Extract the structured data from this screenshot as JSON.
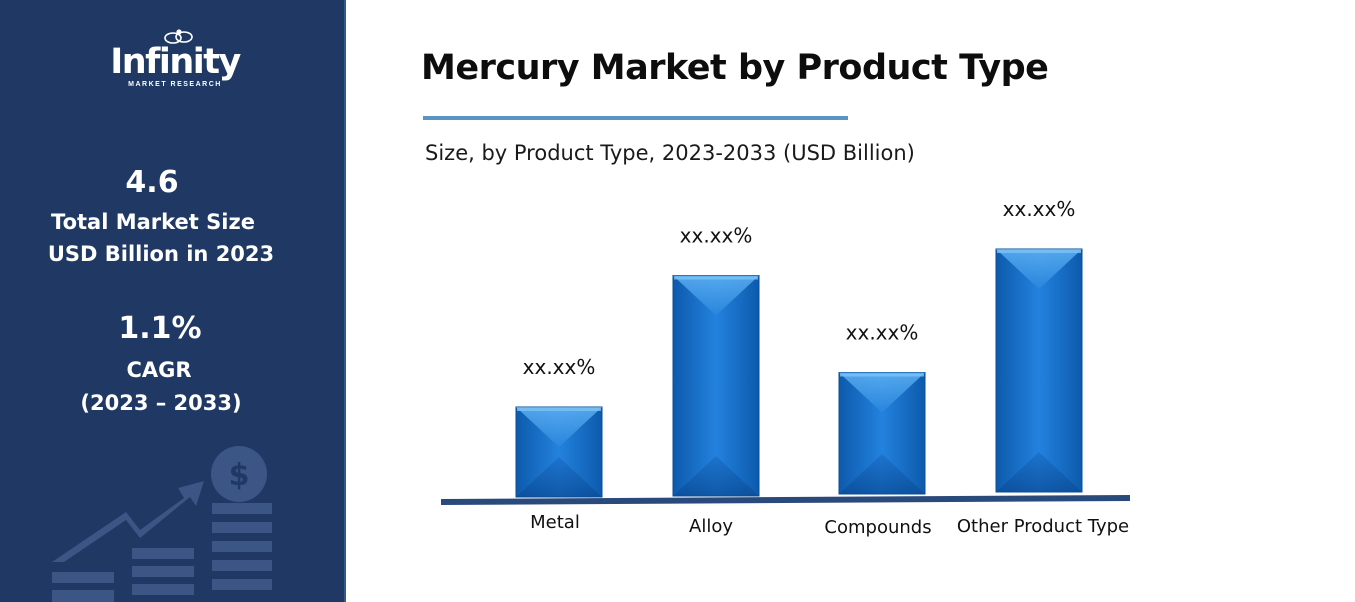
{
  "brand": {
    "name": "Infinity",
    "tagline": "MARKET RESEARCH"
  },
  "sidebar": {
    "market_size_value": "4.6",
    "market_size_label_1": "Total Market Size",
    "market_size_label_2": "USD Billion in 2023",
    "cagr_value": "1.1%",
    "cagr_label": "CAGR",
    "cagr_period": "(2023 – 2033)",
    "decoration_icon": "growth-chart-dollar-icon"
  },
  "colors": {
    "sidebar_bg": "#1f3864",
    "accent_rule": "#5b94c2",
    "bar_main": "#1f7ad6",
    "bar_dark": "#0c58ac",
    "bar_light": "#4aa3ee",
    "baseline": "#2b4a7c"
  },
  "chart_data": {
    "type": "bar",
    "title": "Mercury Market by Product Type",
    "subtitle": "Size, by Product Type, 2023-2033 (USD Billion)",
    "categories": [
      "Metal",
      "Alloy",
      "Compounds",
      "Other Product Type"
    ],
    "values": [
      2.0,
      4.9,
      2.7,
      5.4
    ],
    "data_labels": [
      "xx.xx%",
      "xx.xx%",
      "xx.xx%",
      "xx.xx%"
    ],
    "ylim": [
      0,
      6
    ],
    "grid": false,
    "legend": "none"
  }
}
